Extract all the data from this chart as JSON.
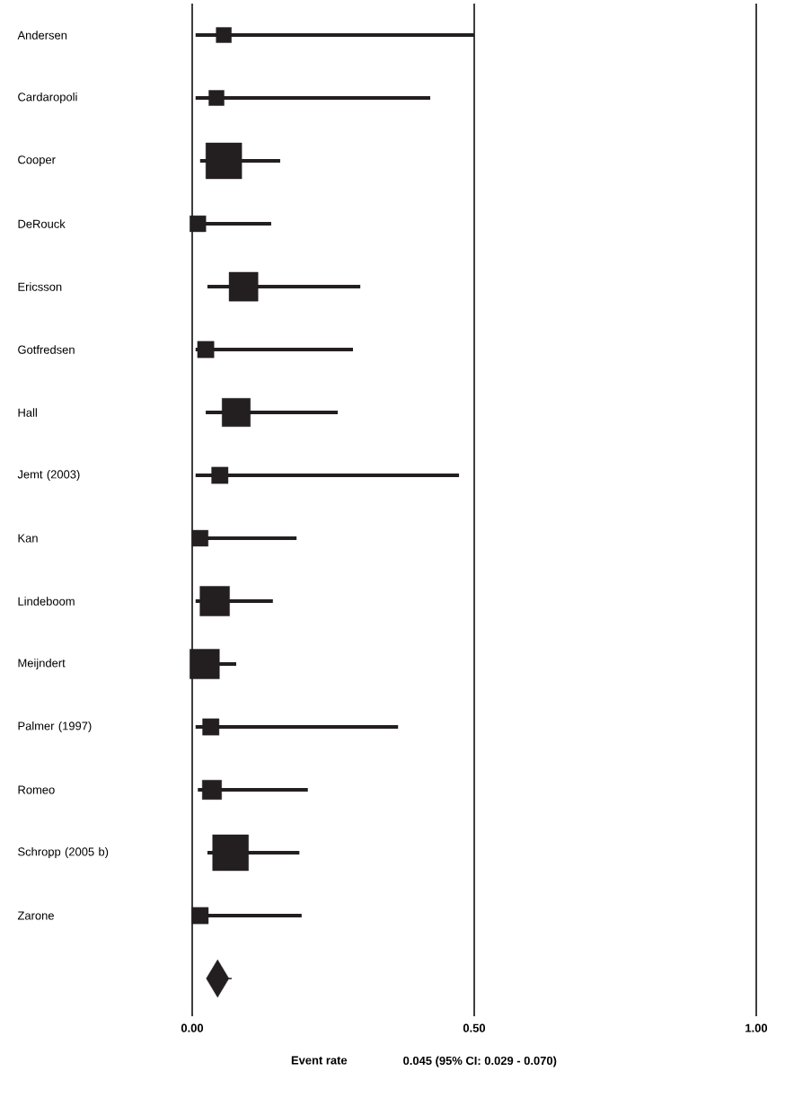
{
  "chart_data": {
    "type": "bubble",
    "orientation": "horizontal",
    "grid": "x",
    "xlabel": "Event rate",
    "annotations": [
      "0.045 (95% CI: 0.029 - 0.070)"
    ],
    "categories": [
      "Andersen",
      "Cardaropoli",
      "Cooper",
      "DeRouck",
      "Ericsson",
      "Gotfredsen",
      "Hall",
      "Jemt (2003)",
      "Kan",
      "Lindeboom",
      "Meijndert",
      "Palmer (1997)",
      "Romeo",
      "Schropp (2005 b)",
      "Zarone",
      null
    ],
    "xlim": [
      0,
      1
    ],
    "xticks": [
      {
        "value": 0,
        "label": "0.00"
      },
      {
        "value": 0.5,
        "label": "0.50"
      },
      {
        "value": 1,
        "label": "1.00"
      }
    ],
    "series": [
      {
        "color": "#231f20",
        "marker": "square",
        "values": [
          0.056,
          0.043,
          0.056,
          0.01,
          0.091,
          0.024,
          0.078,
          0.049,
          0.014,
          0.04,
          0.022,
          0.033,
          0.035,
          0.068,
          0.014,
          null
        ],
        "errors": [
          [
            0.006,
            0.5
          ],
          [
            0.006,
            0.422
          ],
          [
            0.014,
            0.156
          ],
          [
            0.01,
            0.14
          ],
          [
            0.027,
            0.298
          ],
          [
            0.006,
            0.285
          ],
          [
            0.024,
            0.258
          ],
          [
            0.006,
            0.473
          ],
          [
            0.0,
            0.185
          ],
          [
            0.006,
            0.143
          ],
          [
            0.022,
            0.078
          ],
          [
            0.006,
            0.365
          ],
          [
            0.01,
            0.205
          ],
          [
            0.027,
            0.19
          ],
          [
            0.014,
            0.194
          ],
          null
        ],
        "sizes": [
          0.18,
          0.18,
          1,
          0.2,
          0.65,
          0.21,
          0.62,
          0.21,
          0.2,
          0.68,
          0.68,
          0.21,
          0.29,
          1,
          0.21,
          null
        ]
      },
      {
        "color": "#231f20",
        "marker": "diamond",
        "values": [
          null,
          null,
          null,
          null,
          null,
          null,
          null,
          null,
          null,
          null,
          null,
          null,
          null,
          null,
          null,
          0.045
        ],
        "errors": [
          null,
          null,
          null,
          null,
          null,
          null,
          null,
          null,
          null,
          null,
          null,
          null,
          null,
          null,
          null,
          [
            0.029,
            0.07
          ]
        ]
      }
    ]
  }
}
